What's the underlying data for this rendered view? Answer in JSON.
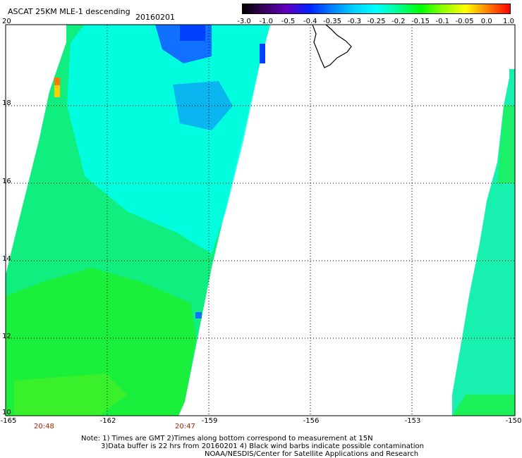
{
  "title": "ASCAT 25KM MLE-1 descending",
  "date": "20160201",
  "colorbar": {
    "labels": [
      "-3.0",
      "-1.0",
      "-0.5",
      "-0.4",
      "-0.35",
      "-0.3",
      "-0.25",
      "-0.2",
      "-0.15",
      "-0.1",
      "-0.05",
      "0.0",
      "1.0"
    ],
    "colors": [
      "#000000",
      "#3a0060",
      "#6000c0",
      "#0020ff",
      "#0080ff",
      "#00d0ff",
      "#00ffff",
      "#00ff90",
      "#00ff00",
      "#90ff00",
      "#ffff00",
      "#ff8000",
      "#ff0000"
    ]
  },
  "axes": {
    "lat_labels": [
      "20",
      "18",
      "16",
      "14",
      "12",
      "10"
    ],
    "lon_labels": [
      "-165",
      "-162",
      "-159",
      "-156",
      "-153",
      "-150"
    ],
    "time_labels": [
      "20:48",
      "20:47"
    ]
  },
  "chart_data": {
    "type": "heatmap",
    "lat_range": [
      10,
      20
    ],
    "lon_range": [
      -165,
      -150
    ],
    "grid": true,
    "colors": {
      "swath_left": "#10ee80",
      "swath_right": "#18f0b0",
      "cyan_zone": "#00ffee",
      "blue_patch": "#1070ff",
      "dark_blue": "#0040ff",
      "green_zone": "#20f020",
      "yellow": "#ffcc00",
      "orange": "#ff7700"
    }
  },
  "notes": {
    "line1": "Note: 1) Times are GMT 2)Times along bottom correspond to measurement at 15N",
    "line2": "3)Data buffer is 22 hrs from 20160201 4) Black wind barbs indicate possible contamination",
    "line3": "NOAA/NESDIS/Center for Satellite Applications and Research"
  }
}
